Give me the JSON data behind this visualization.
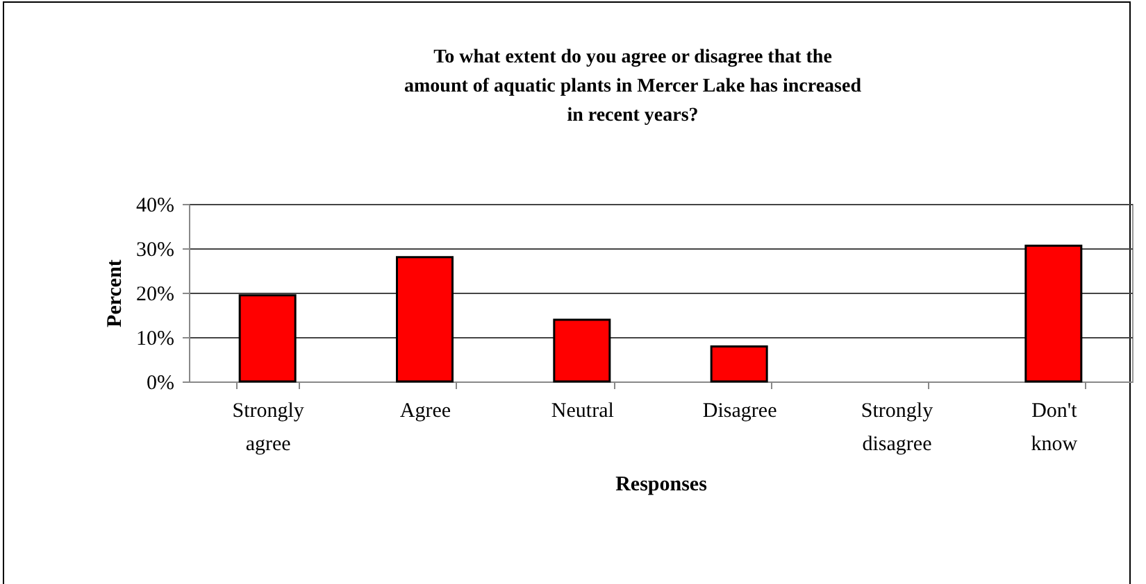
{
  "chart_data": {
    "type": "bar",
    "title": "To what extent do you agree or disagree that the amount of aquatic plants in Mercer Lake has increased in recent years?",
    "xlabel": "Responses",
    "ylabel": "Percent",
    "categories": [
      "Strongly agree",
      "Agree",
      "Neutral",
      "Disagree",
      "Strongly disagree",
      "Don't know"
    ],
    "values": [
      19.4,
      28.0,
      13.9,
      7.9,
      0,
      30.6
    ],
    "color": "#ff0000",
    "ylim": [
      0,
      40
    ],
    "yticks": [
      {
        "value": 0,
        "label": "0%"
      },
      {
        "value": 10,
        "label": "10%"
      },
      {
        "value": 20,
        "label": "20%"
      },
      {
        "value": 30,
        "label": "30%"
      },
      {
        "value": 40,
        "label": "40%"
      }
    ],
    "grid": "y"
  }
}
